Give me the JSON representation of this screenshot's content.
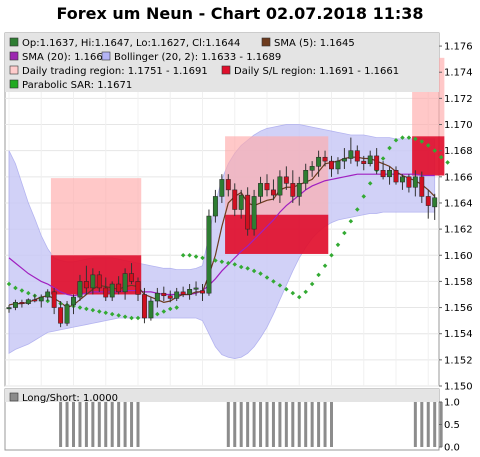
{
  "chart_data": {
    "type": "candlestick",
    "title": "Forex um Neun - Chart 02.07.2018 11:38",
    "ylim": [
      1.15,
      1.177
    ],
    "yticks": [
      "1.176",
      "1.174",
      "1.172",
      "1.170",
      "1.168",
      "1.166",
      "1.164",
      "1.162",
      "1.160",
      "1.158",
      "1.156",
      "1.154",
      "1.152",
      "1.150"
    ],
    "legend": [
      {
        "label": "Op:1.1637, Hi:1.1647, Lo:1.1627, Cl:1.1644",
        "color": "#2e7d32"
      },
      {
        "label": "SMA (5): 1.1645",
        "color": "#6d3b1e"
      },
      {
        "label": "SMA (20): 1.1661",
        "color": "#9c27b0"
      },
      {
        "label": "Bollinger (20, 2): 1.1633 - 1.1689",
        "color": "#b3b3f5"
      },
      {
        "label": "Daily trading region: 1.1751 - 1.1691",
        "color": "#ffcccc"
      },
      {
        "label": "Daily S/L region: 1.1691 - 1.1661",
        "color": "#e0102c"
      },
      {
        "label": "Parabolic SAR: 1.1671",
        "color": "#22aa22"
      }
    ],
    "candles": [
      [
        1.1559,
        1.1562,
        1.1556,
        1.156
      ],
      [
        1.156,
        1.1566,
        1.1558,
        1.1564
      ],
      [
        1.1564,
        1.1566,
        1.156,
        1.1563
      ],
      [
        1.1563,
        1.1567,
        1.1562,
        1.1566
      ],
      [
        1.1566,
        1.157,
        1.1564,
        1.1565
      ],
      [
        1.1565,
        1.157,
        1.156,
        1.1568
      ],
      [
        1.1568,
        1.1574,
        1.1565,
        1.1572
      ],
      [
        1.1572,
        1.1575,
        1.1555,
        1.156
      ],
      [
        1.156,
        1.1565,
        1.1545,
        1.1548
      ],
      [
        1.1548,
        1.1565,
        1.1546,
        1.1562
      ],
      [
        1.1562,
        1.157,
        1.1555,
        1.1568
      ],
      [
        1.1568,
        1.1585,
        1.1565,
        1.158
      ],
      [
        1.158,
        1.1592,
        1.157,
        1.1575
      ],
      [
        1.1575,
        1.159,
        1.157,
        1.1585
      ],
      [
        1.1585,
        1.1588,
        1.1572,
        1.1575
      ],
      [
        1.1575,
        1.1583,
        1.1565,
        1.1568
      ],
      [
        1.1568,
        1.158,
        1.1565,
        1.1578
      ],
      [
        1.1578,
        1.1584,
        1.157,
        1.1572
      ],
      [
        1.1572,
        1.159,
        1.1566,
        1.1586
      ],
      [
        1.1586,
        1.1594,
        1.1578,
        1.158
      ],
      [
        1.158,
        1.1583,
        1.1565,
        1.157
      ],
      [
        1.157,
        1.1575,
        1.1548,
        1.1552
      ],
      [
        1.1552,
        1.1568,
        1.155,
        1.1565
      ],
      [
        1.1565,
        1.1575,
        1.156,
        1.1571
      ],
      [
        1.1571,
        1.1576,
        1.1565,
        1.1569
      ],
      [
        1.1569,
        1.1573,
        1.1564,
        1.1567
      ],
      [
        1.1567,
        1.1575,
        1.1565,
        1.1572
      ],
      [
        1.1572,
        1.1576,
        1.1568,
        1.157
      ],
      [
        1.157,
        1.1578,
        1.1566,
        1.1574
      ],
      [
        1.1574,
        1.158,
        1.1569,
        1.1575
      ],
      [
        1.1573,
        1.1578,
        1.1565,
        1.1571
      ],
      [
        1.1571,
        1.1635,
        1.1569,
        1.163
      ],
      [
        1.163,
        1.165,
        1.1625,
        1.1645
      ],
      [
        1.1645,
        1.1662,
        1.164,
        1.1658
      ],
      [
        1.1658,
        1.1662,
        1.1645,
        1.165
      ],
      [
        1.165,
        1.1655,
        1.163,
        1.1635
      ],
      [
        1.1635,
        1.165,
        1.1628,
        1.1646
      ],
      [
        1.1646,
        1.1652,
        1.1615,
        1.162
      ],
      [
        1.162,
        1.165,
        1.1615,
        1.1645
      ],
      [
        1.1645,
        1.166,
        1.164,
        1.1655
      ],
      [
        1.1655,
        1.1662,
        1.1645,
        1.165
      ],
      [
        1.165,
        1.1658,
        1.1642,
        1.1646
      ],
      [
        1.1646,
        1.1665,
        1.164,
        1.166
      ],
      [
        1.166,
        1.1668,
        1.165,
        1.1655
      ],
      [
        1.1655,
        1.1665,
        1.164,
        1.1645
      ],
      [
        1.1645,
        1.166,
        1.1638,
        1.1655
      ],
      [
        1.1655,
        1.167,
        1.165,
        1.1665
      ],
      [
        1.1665,
        1.1672,
        1.166,
        1.1668
      ],
      [
        1.1668,
        1.168,
        1.166,
        1.1675
      ],
      [
        1.1675,
        1.168,
        1.1668,
        1.1672
      ],
      [
        1.1672,
        1.1676,
        1.166,
        1.1666
      ],
      [
        1.1666,
        1.1675,
        1.1662,
        1.1672
      ],
      [
        1.1672,
        1.1682,
        1.1666,
        1.1674
      ],
      [
        1.1674,
        1.169,
        1.167,
        1.168
      ],
      [
        1.168,
        1.1684,
        1.1668,
        1.1672
      ],
      [
        1.1672,
        1.1676,
        1.1665,
        1.167
      ],
      [
        1.167,
        1.168,
        1.1668,
        1.1676
      ],
      [
        1.1676,
        1.1682,
        1.1662,
        1.1665
      ],
      [
        1.1665,
        1.1672,
        1.1658,
        1.166
      ],
      [
        1.166,
        1.1668,
        1.1654,
        1.1665
      ],
      [
        1.1665,
        1.1668,
        1.1654,
        1.1656
      ],
      [
        1.1656,
        1.1662,
        1.165,
        1.166
      ],
      [
        1.166,
        1.1662,
        1.1648,
        1.1652
      ],
      [
        1.1652,
        1.1665,
        1.1645,
        1.166
      ],
      [
        1.166,
        1.1664,
        1.164,
        1.1645
      ],
      [
        1.1645,
        1.165,
        1.1628,
        1.1638
      ],
      [
        1.1637,
        1.1647,
        1.1627,
        1.1644
      ]
    ],
    "sma5": [
      1.1562,
      1.1563,
      1.1563,
      1.1564,
      1.1566,
      1.1568,
      1.1569,
      1.1567,
      1.1564,
      1.156,
      1.1562,
      1.1566,
      1.157,
      1.1574,
      1.1577,
      1.1576,
      1.1575,
      1.1574,
      1.1576,
      1.1577,
      1.1576,
      1.157,
      1.1568,
      1.1566,
      1.1564,
      1.1565,
      1.1568,
      1.157,
      1.157,
      1.1572,
      1.1572,
      1.1585,
      1.16,
      1.1622,
      1.164,
      1.1645,
      1.1648,
      1.164,
      1.1638,
      1.164,
      1.1642,
      1.1643,
      1.165,
      1.1652,
      1.1652,
      1.1654,
      1.1656,
      1.1658,
      1.1664,
      1.167,
      1.1671,
      1.1672,
      1.1674,
      1.1675,
      1.1675,
      1.1674,
      1.1674,
      1.1672,
      1.167,
      1.1668,
      1.1664,
      1.1661,
      1.1659,
      1.1657,
      1.1654,
      1.165,
      1.1645
    ],
    "sma20": [
      1.1598,
      1.1594,
      1.159,
      1.1586,
      1.1583,
      1.158,
      1.1578,
      1.1575,
      1.1572,
      1.157,
      1.1569,
      1.157,
      1.1571,
      1.1572,
      1.1572,
      1.1572,
      1.1572,
      1.1572,
      1.1573,
      1.1573,
      1.1573,
      1.1572,
      1.1572,
      1.1571,
      1.157,
      1.157,
      1.157,
      1.157,
      1.157,
      1.1571,
      1.1573,
      1.1577,
      1.1582,
      1.1588,
      1.1593,
      1.1598,
      1.1603,
      1.1607,
      1.1612,
      1.1617,
      1.1622,
      1.1627,
      1.1633,
      1.1638,
      1.1642,
      1.1646,
      1.165,
      1.1653,
      1.1655,
      1.1657,
      1.1658,
      1.1659,
      1.166,
      1.1661,
      1.1662,
      1.1662,
      1.1662,
      1.1662,
      1.1662,
      1.1662,
      1.1662,
      1.1662,
      1.1662,
      1.1662,
      1.1661,
      1.1661,
      1.1661
    ],
    "bb_upper": [
      1.168,
      1.167,
      1.1655,
      1.164,
      1.1628,
      1.1615,
      1.1605,
      1.1598,
      1.1596,
      1.1595,
      1.1595,
      1.1596,
      1.1597,
      1.1598,
      1.1598,
      1.1598,
      1.1598,
      1.1597,
      1.1596,
      1.1595,
      1.1594,
      1.1593,
      1.1592,
      1.1591,
      1.159,
      1.159,
      1.1589,
      1.1589,
      1.1589,
      1.159,
      1.1592,
      1.1615,
      1.164,
      1.1658,
      1.167,
      1.1678,
      1.1684,
      1.1688,
      1.1692,
      1.1695,
      1.1697,
      1.1698,
      1.1699,
      1.17,
      1.17,
      1.17,
      1.1699,
      1.1698,
      1.1697,
      1.1696,
      1.1695,
      1.1694,
      1.1693,
      1.1692,
      1.1692,
      1.1692,
      1.1691,
      1.169,
      1.169,
      1.169,
      1.1689,
      1.1689,
      1.1689,
      1.1689,
      1.1689,
      1.1689,
      1.1689
    ],
    "bb_lower": [
      1.1525,
      1.1528,
      1.153,
      1.1532,
      1.1535,
      1.1538,
      1.1541,
      1.1542,
      1.1543,
      1.1544,
      1.1545,
      1.1546,
      1.1547,
      1.1548,
      1.1549,
      1.155,
      1.1551,
      1.1552,
      1.1552,
      1.1552,
      1.1552,
      1.1552,
      1.1552,
      1.1552,
      1.1552,
      1.1552,
      1.1552,
      1.1552,
      1.1552,
      1.1552,
      1.155,
      1.154,
      1.153,
      1.1524,
      1.1522,
      1.1521,
      1.1522,
      1.1525,
      1.153,
      1.1537,
      1.1545,
      1.1555,
      1.1566,
      1.1577,
      1.1588,
      1.1598,
      1.1606,
      1.1613,
      1.1618,
      1.1622,
      1.1625,
      1.1627,
      1.1628,
      1.1629,
      1.163,
      1.1631,
      1.1632,
      1.1632,
      1.1633,
      1.1633,
      1.1633,
      1.1633,
      1.1633,
      1.1633,
      1.1633,
      1.1633,
      1.1633
    ],
    "sar": [
      1.1578,
      1.1575,
      1.1573,
      1.1571,
      1.1569,
      1.1567,
      1.1565,
      1.1564,
      1.1563,
      1.1562,
      1.1561,
      1.156,
      1.1559,
      1.1558,
      1.1557,
      1.1556,
      1.1555,
      1.1554,
      1.1553,
      1.1552,
      1.1552,
      1.1553,
      1.1554,
      1.1555,
      1.1557,
      1.1559,
      1.156,
      1.16,
      1.16,
      1.1599,
      1.1598,
      1.1597,
      1.1596,
      1.1595,
      1.1594,
      1.1593,
      1.1591,
      1.159,
      1.1588,
      1.1586,
      1.1583,
      1.158,
      1.1577,
      1.1574,
      1.1571,
      1.1568,
      1.1572,
      1.1578,
      1.1585,
      1.1592,
      1.16,
      1.1608,
      1.1617,
      1.1626,
      1.1635,
      1.1645,
      1.1655,
      1.1665,
      1.1674,
      1.1682,
      1.1688,
      1.169,
      1.169,
      1.1689,
      1.1687,
      1.1684,
      1.168,
      1.1675,
      1.1671
    ],
    "sar_offset": 26,
    "trading_regions": [
      [
        7,
        20,
        1.1659,
        1.16
      ],
      [
        34,
        49,
        1.1691,
        1.1631
      ],
      [
        63,
        67,
        1.1751,
        1.1691
      ]
    ],
    "sl_regions": [
      [
        7,
        20,
        1.16,
        1.157
      ],
      [
        34,
        49,
        1.1631,
        1.1601
      ],
      [
        63,
        67,
        1.1691,
        1.1661
      ]
    ],
    "long_short": {
      "label": "Long/Short: 1.0000",
      "ylim": [
        0,
        1
      ],
      "yticks": [
        "1.0",
        "0.5",
        "0.0"
      ],
      "active_ranges": [
        [
          8,
          20
        ],
        [
          34,
          50
        ],
        [
          63,
          67
        ]
      ]
    }
  }
}
